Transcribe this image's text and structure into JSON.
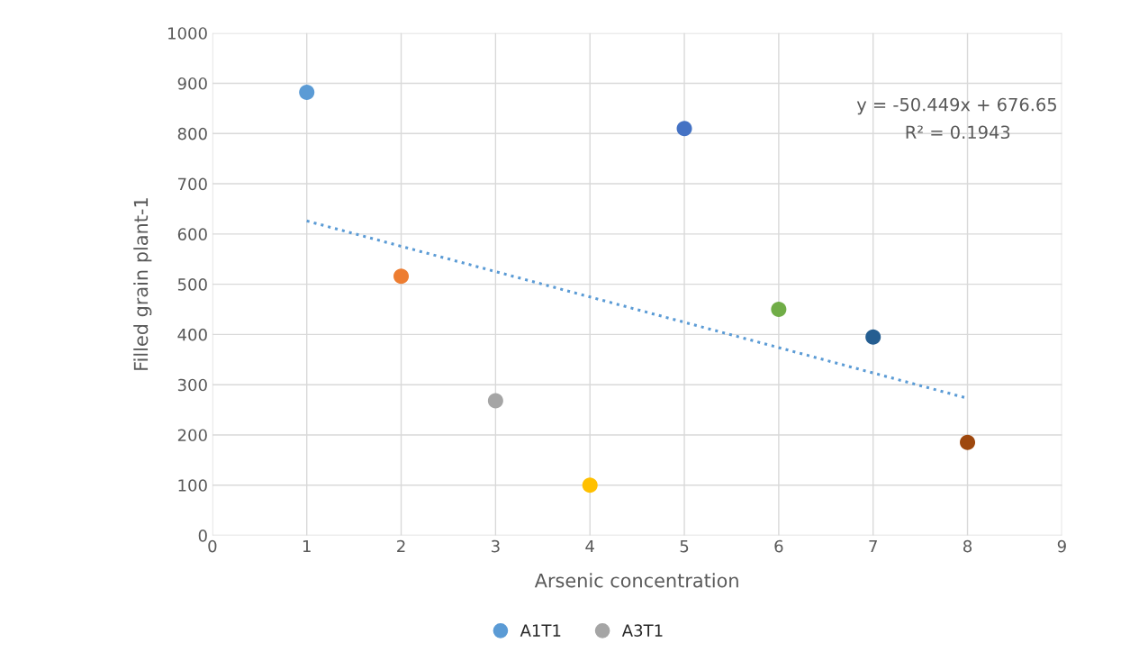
{
  "chart_data": {
    "type": "scatter",
    "xlabel": "Arsenic concentration",
    "ylabel": "Filled grain plant-1",
    "xlim": [
      0,
      9
    ],
    "xticks": [
      0,
      1,
      2,
      3,
      4,
      5,
      6,
      7,
      8,
      9
    ],
    "ylim": [
      0,
      1000
    ],
    "yticks": [
      0,
      100,
      200,
      300,
      400,
      500,
      600,
      700,
      800,
      900,
      1000
    ],
    "grid": true,
    "legend": "bottom",
    "marker": "circle",
    "series": [
      {
        "name": "A1T1",
        "color": "#5b9bd5",
        "x": [
          1
        ],
        "values": [
          882
        ]
      },
      {
        "color": "#ed7d31",
        "x": [
          2
        ],
        "values": [
          516
        ]
      },
      {
        "name": "A3T1",
        "color": "#a5a5a5",
        "x": [
          3
        ],
        "values": [
          268
        ]
      },
      {
        "color": "#ffc000",
        "x": [
          4
        ],
        "values": [
          100
        ]
      },
      {
        "color": "#4472c4",
        "x": [
          5
        ],
        "values": [
          810
        ]
      },
      {
        "color": "#70ad47",
        "x": [
          6
        ],
        "values": [
          450
        ]
      },
      {
        "color": "#255e91",
        "x": [
          7
        ],
        "values": [
          395
        ]
      },
      {
        "color": "#9e480e",
        "x": [
          8
        ],
        "values": [
          185
        ]
      },
      {
        "type": "line",
        "marker": "none",
        "color": "#5b9bd5",
        "line_style": "dotted",
        "x": [
          1,
          8
        ],
        "values": [
          626,
          273
        ]
      }
    ],
    "annotations": [
      "y = -50.449x + 676.65",
      "R² = 0.1943"
    ]
  }
}
